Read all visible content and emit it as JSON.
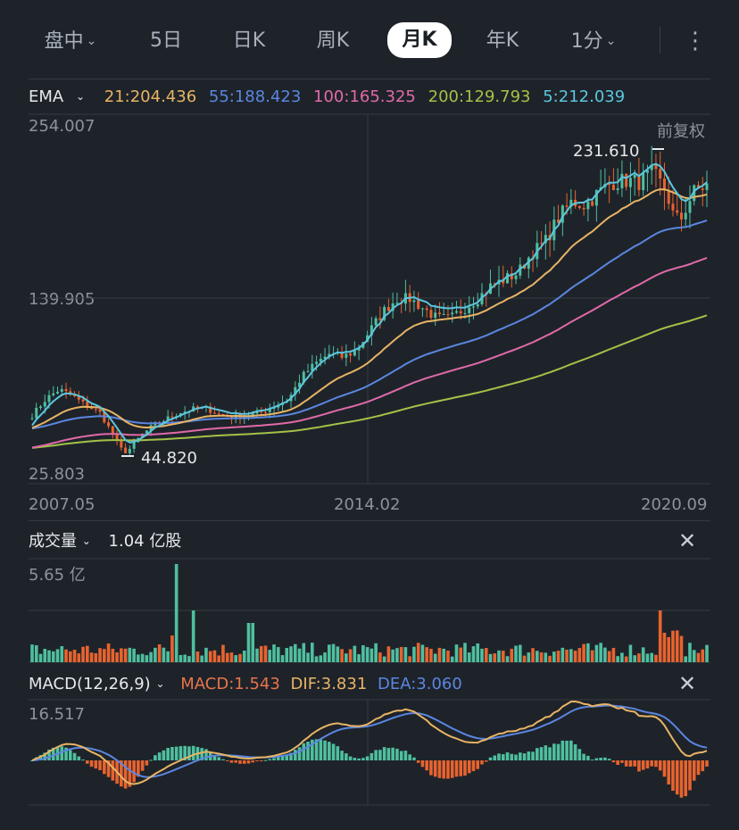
{
  "tabs": [
    {
      "label": "盘中",
      "dropdown": true
    },
    {
      "label": "5日",
      "dropdown": false
    },
    {
      "label": "日K",
      "dropdown": false
    },
    {
      "label": "周K",
      "dropdown": false
    },
    {
      "label": "月K",
      "dropdown": false,
      "active": true
    },
    {
      "label": "年K",
      "dropdown": false
    },
    {
      "label": "1分",
      "dropdown": true
    }
  ],
  "more_icon": "vertical-ellipsis-icon",
  "ema": {
    "label": "EMA",
    "values": [
      {
        "text": "21:204.436",
        "color": "#e8b464"
      },
      {
        "text": "55:188.423",
        "color": "#5b86e0"
      },
      {
        "text": "100:165.325",
        "color": "#e06aa8"
      },
      {
        "text": "200:129.793",
        "color": "#a3c247"
      },
      {
        "text": "5:212.039",
        "color": "#5cc6df"
      }
    ]
  },
  "price_chart": {
    "adjust_label": "前复权",
    "y_top": "254.007",
    "y_mid": "139.905",
    "y_bottom": "25.803",
    "max_label": "231.610",
    "min_label": "44.820",
    "x_labels": [
      "2007.05",
      "2014.02",
      "2020.09"
    ]
  },
  "volume": {
    "title": "成交量",
    "value": "1.04 亿股",
    "y_top": "5.65 亿"
  },
  "macd": {
    "title": "MACD(12,26,9)",
    "macd_text": "MACD:1.543",
    "dif_text": "DIF:3.831",
    "dea_text": "DEA:3.060",
    "macd_color": "#e8744a",
    "dif_color": "#e8b464",
    "dea_color": "#5b86e0",
    "y_top": "16.517"
  },
  "colors": {
    "up": "#4fbfa0",
    "down": "#e8632f",
    "ema5": "#5cc6df",
    "ema21": "#e8b464",
    "ema55": "#5b86e0",
    "ema100": "#e06aa8",
    "ema200": "#a3c247"
  },
  "chart_data": {
    "type": "line",
    "title": "",
    "x_start": "2007.05",
    "x_end": "2020.09",
    "x_ticks": [
      "2007.05",
      "2014.02",
      "2020.09"
    ],
    "ylim": [
      25.803,
      254.007
    ],
    "max_price": 231.61,
    "min_price": 44.82,
    "price_path": [
      [
        0,
        68
      ],
      [
        0.02,
        78
      ],
      [
        0.04,
        84
      ],
      [
        0.06,
        80
      ],
      [
        0.08,
        74
      ],
      [
        0.1,
        70
      ],
      [
        0.12,
        56
      ],
      [
        0.13,
        48
      ],
      [
        0.14,
        45
      ],
      [
        0.16,
        55
      ],
      [
        0.18,
        62
      ],
      [
        0.2,
        66
      ],
      [
        0.22,
        70
      ],
      [
        0.24,
        72
      ],
      [
        0.26,
        72
      ],
      [
        0.28,
        68
      ],
      [
        0.3,
        67
      ],
      [
        0.32,
        68
      ],
      [
        0.34,
        70
      ],
      [
        0.36,
        74
      ],
      [
        0.38,
        78
      ],
      [
        0.4,
        92
      ],
      [
        0.42,
        100
      ],
      [
        0.44,
        106
      ],
      [
        0.46,
        104
      ],
      [
        0.48,
        108
      ],
      [
        0.5,
        120
      ],
      [
        0.52,
        132
      ],
      [
        0.54,
        140
      ],
      [
        0.56,
        140
      ],
      [
        0.58,
        134
      ],
      [
        0.6,
        128
      ],
      [
        0.62,
        128
      ],
      [
        0.64,
        134
      ],
      [
        0.66,
        140
      ],
      [
        0.68,
        148
      ],
      [
        0.7,
        152
      ],
      [
        0.72,
        156
      ],
      [
        0.74,
        168
      ],
      [
        0.76,
        175
      ],
      [
        0.78,
        190
      ],
      [
        0.8,
        200
      ],
      [
        0.82,
        198
      ],
      [
        0.84,
        206
      ],
      [
        0.86,
        212
      ],
      [
        0.88,
        213
      ],
      [
        0.9,
        212
      ],
      [
        0.92,
        218
      ],
      [
        0.94,
        206
      ],
      [
        0.95,
        192
      ],
      [
        0.96,
        188
      ],
      [
        0.98,
        206
      ],
      [
        1.0,
        210
      ]
    ],
    "series": [
      {
        "name": "EMA5",
        "last": 212.039
      },
      {
        "name": "EMA21",
        "last": 204.436
      },
      {
        "name": "EMA55",
        "last": 188.423
      },
      {
        "name": "EMA100",
        "last": 165.325
      },
      {
        "name": "EMA200",
        "last": 129.793
      }
    ],
    "volume_ymax": "5.65 亿",
    "volume_last": "1.04 亿股",
    "macd_last": {
      "MACD": 1.543,
      "DIF": 3.831,
      "DEA": 3.06
    },
    "macd_ymax": 16.517
  }
}
